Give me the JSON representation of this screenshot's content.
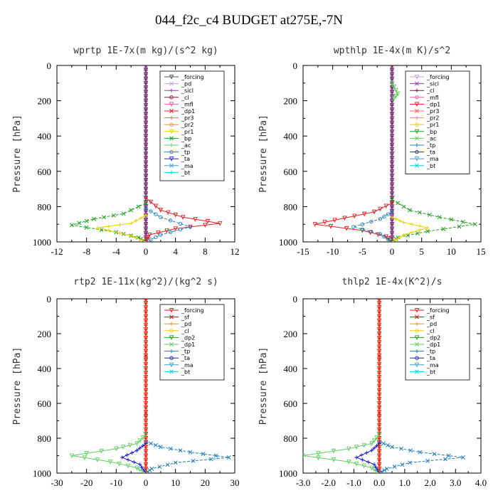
{
  "title": "044_f2c_c4  BUDGET at275E,-7N",
  "chart_data": [
    {
      "type": "line",
      "panel_title": "wprtp  1E-7x(m kg)/(s^2 kg)",
      "ylabel": "Pressure [hPa]",
      "ylim": [
        1000,
        0
      ],
      "yticks": [
        "0",
        "200",
        "400",
        "600",
        "800",
        "1000"
      ],
      "xlim": [
        -12,
        12
      ],
      "xticks": [
        "-12",
        "-8",
        "-4",
        "0",
        "4",
        "8",
        "12"
      ],
      "legend": [
        "_forcing",
        "_pd",
        "_sicl",
        "_cl",
        "_mfl",
        "_dp1",
        "_pr3",
        "_pr2",
        "_pr1",
        "_bp",
        "_ac",
        "_tp",
        "_ta",
        "_ma",
        "_bt"
      ],
      "colors": [
        "#555555",
        "#c8a0e0",
        "#9040c0",
        "#8b1040",
        "#e060a0",
        "#e02020",
        "#ff6060",
        "#ff9020",
        "#f0d000",
        "#20a020",
        "#60d060",
        "#2080c0",
        "#2020d0",
        "#40a0d0",
        "#00d0e0"
      ],
      "series": [
        {
          "name": "_dp1",
          "values": [
            [
              0,
              750
            ],
            [
              2,
              820
            ],
            [
              5,
              860
            ],
            [
              10,
              895
            ],
            [
              4,
              925
            ],
            [
              0.5,
              960
            ],
            [
              0,
              1000
            ]
          ]
        },
        {
          "name": "_bp",
          "values": [
            [
              0,
              780
            ],
            [
              -3,
              840
            ],
            [
              -7,
              870
            ],
            [
              -10,
              905
            ],
            [
              -4,
              945
            ],
            [
              -1,
              975
            ],
            [
              0,
              1000
            ]
          ]
        },
        {
          "name": "_pr1",
          "values": [
            [
              0,
              850
            ],
            [
              -2,
              895
            ],
            [
              -6.5,
              920
            ],
            [
              -2,
              965
            ],
            [
              0,
              1000
            ]
          ]
        },
        {
          "name": "_tp",
          "values": [
            [
              0,
              810
            ],
            [
              2,
              860
            ],
            [
              6,
              915
            ],
            [
              2,
              960
            ],
            [
              0,
              1000
            ]
          ]
        }
      ]
    },
    {
      "type": "line",
      "panel_title": "wpthlp  1E-4x(m K)/s^2",
      "ylabel": "Pressure [hPa]",
      "ylim": [
        1000,
        0
      ],
      "yticks": [
        "0",
        "200",
        "400",
        "600",
        "800",
        "1000"
      ],
      "xlim": [
        -15,
        15
      ],
      "xticks": [
        "-15",
        "-10",
        "-5",
        "0",
        "5",
        "10",
        "15"
      ],
      "legend": [
        "_forcing",
        "_sicl",
        "_cl",
        "_mfl",
        "_dp1",
        "_pr3",
        "_pr2",
        "_pr1",
        "_bp",
        "_ac",
        "_tp",
        "_ta",
        "_ma",
        "_bt"
      ],
      "colors": [
        "#c8a0e0",
        "#9040c0",
        "#8b1040",
        "#e060a0",
        "#e02020",
        "#ff6060",
        "#ff9020",
        "#f0d000",
        "#20a020",
        "#60d060",
        "#2080c0",
        "#2020d0",
        "#40a0d0",
        "#00d0e0"
      ],
      "series": [
        {
          "name": "_dp1",
          "values": [
            [
              0,
              780
            ],
            [
              -3,
              830
            ],
            [
              -8,
              865
            ],
            [
              -13,
              900
            ],
            [
              -5,
              935
            ],
            [
              -1,
              970
            ],
            [
              0,
              1000
            ]
          ]
        },
        {
          "name": "_bp",
          "values": [
            [
              0,
              760
            ],
            [
              3,
              820
            ],
            [
              8,
              860
            ],
            [
              14,
              900
            ],
            [
              6,
              940
            ],
            [
              1,
              975
            ],
            [
              0,
              1000
            ]
          ]
        },
        {
          "name": "_pr1",
          "values": [
            [
              0,
              860
            ],
            [
              2,
              890
            ],
            [
              6,
              920
            ],
            [
              2,
              960
            ],
            [
              0,
              1000
            ]
          ]
        },
        {
          "name": "_tp",
          "values": [
            [
              0,
              830
            ],
            [
              -2,
              870
            ],
            [
              -6.5,
              915
            ],
            [
              -2,
              955
            ],
            [
              0,
              1000
            ]
          ]
        },
        {
          "name": "_ac",
          "values": [
            [
              0,
              100
            ],
            [
              1,
              160
            ],
            [
              0,
              200
            ]
          ]
        }
      ]
    },
    {
      "type": "line",
      "panel_title": "rtp2  1E-11x(kg^2)/(kg^2 s)",
      "ylabel": "Pressure [hPa]",
      "ylim": [
        1000,
        0
      ],
      "yticks": [
        "0",
        "200",
        "400",
        "600",
        "800",
        "1000"
      ],
      "xlim": [
        -30,
        30
      ],
      "xticks": [
        "-30",
        "-20",
        "-10",
        "0",
        "10",
        "20",
        "30"
      ],
      "legend": [
        "_forcing",
        "_sf",
        "_pd",
        "_cl",
        "_dp2",
        "_dp1",
        "_tp",
        "_ta",
        "_ma",
        "_bt"
      ],
      "colors": [
        "#e02020",
        "#c01010",
        "#ff9020",
        "#f0d000",
        "#20a020",
        "#60d060",
        "#2080c0",
        "#2020d0",
        "#40a0d0",
        "#00d0e0"
      ],
      "series": [
        {
          "name": "_dp1",
          "values": [
            [
              0,
              780
            ],
            [
              -3,
              830
            ],
            [
              -10,
              860
            ],
            [
              -25,
              900
            ],
            [
              -12,
              935
            ],
            [
              -3,
              970
            ],
            [
              0,
              1000
            ]
          ]
        },
        {
          "name": "_tp",
          "values": [
            [
              0,
              820
            ],
            [
              5,
              850
            ],
            [
              15,
              880
            ],
            [
              28,
              910
            ],
            [
              10,
              940
            ],
            [
              2,
              975
            ],
            [
              0,
              1000
            ]
          ]
        },
        {
          "name": "_ta",
          "values": [
            [
              0,
              830
            ],
            [
              -3,
              870
            ],
            [
              -8,
              910
            ],
            [
              -2,
              950
            ],
            [
              0,
              1000
            ]
          ]
        },
        {
          "name": "_forcing",
          "values": [
            [
              0,
              0
            ],
            [
              0,
              1000
            ]
          ]
        }
      ]
    },
    {
      "type": "line",
      "panel_title": "thlp2  1E-4x(K^2)/s",
      "ylabel": "Pressure [hPa]",
      "ylim": [
        1000,
        0
      ],
      "yticks": [
        "0",
        "200",
        "400",
        "600",
        "800",
        "1000"
      ],
      "xlim": [
        -3,
        4
      ],
      "xticks": [
        "-3.0",
        "-2.0",
        "-1.0",
        "0.0",
        "1.0",
        "2.0",
        "3.0",
        "4.0"
      ],
      "legend": [
        "_forcing",
        "_sf",
        "_pd",
        "_cl",
        "_dp2",
        "_dp1",
        "_tp",
        "_ta",
        "_ma",
        "_bt"
      ],
      "colors": [
        "#e02020",
        "#c01010",
        "#ff9020",
        "#f0d000",
        "#20a020",
        "#60d060",
        "#2080c0",
        "#2020d0",
        "#40a0d0",
        "#00d0e0"
      ],
      "series": [
        {
          "name": "_dp1",
          "values": [
            [
              0,
              780
            ],
            [
              -0.3,
              830
            ],
            [
              -1.2,
              860
            ],
            [
              -3,
              900
            ],
            [
              -1.2,
              935
            ],
            [
              -0.3,
              970
            ],
            [
              0,
              1000
            ]
          ]
        },
        {
          "name": "_tp",
          "values": [
            [
              0,
              820
            ],
            [
              0.5,
              850
            ],
            [
              1.6,
              880
            ],
            [
              3.3,
              910
            ],
            [
              1.2,
              940
            ],
            [
              0.3,
              975
            ],
            [
              0,
              1000
            ]
          ]
        },
        {
          "name": "_ta",
          "values": [
            [
              0,
              830
            ],
            [
              -0.3,
              870
            ],
            [
              -0.9,
              910
            ],
            [
              -0.2,
              950
            ],
            [
              0,
              1000
            ]
          ]
        },
        {
          "name": "_forcing",
          "values": [
            [
              0,
              0
            ],
            [
              0,
              1000
            ]
          ]
        }
      ]
    }
  ]
}
